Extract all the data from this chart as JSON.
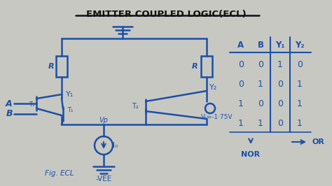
{
  "title": "EMITTER COUPLED LOGIC(ECL)",
  "bg_color": "#c8c8c2",
  "circuit_color": "#1a50a8",
  "dark_color": "#111111",
  "fig_label": "Fig. ECL",
  "table_data": [
    [
      "0",
      "0",
      "1",
      "0"
    ],
    [
      "0",
      "1",
      "0",
      "1"
    ],
    [
      "1",
      "0",
      "0",
      "1"
    ],
    [
      "1",
      "1",
      "0",
      "1"
    ]
  ],
  "fig_size": [
    4.74,
    2.66
  ],
  "dpi": 100,
  "title_fontsize": 9.5,
  "lw": 1.8
}
